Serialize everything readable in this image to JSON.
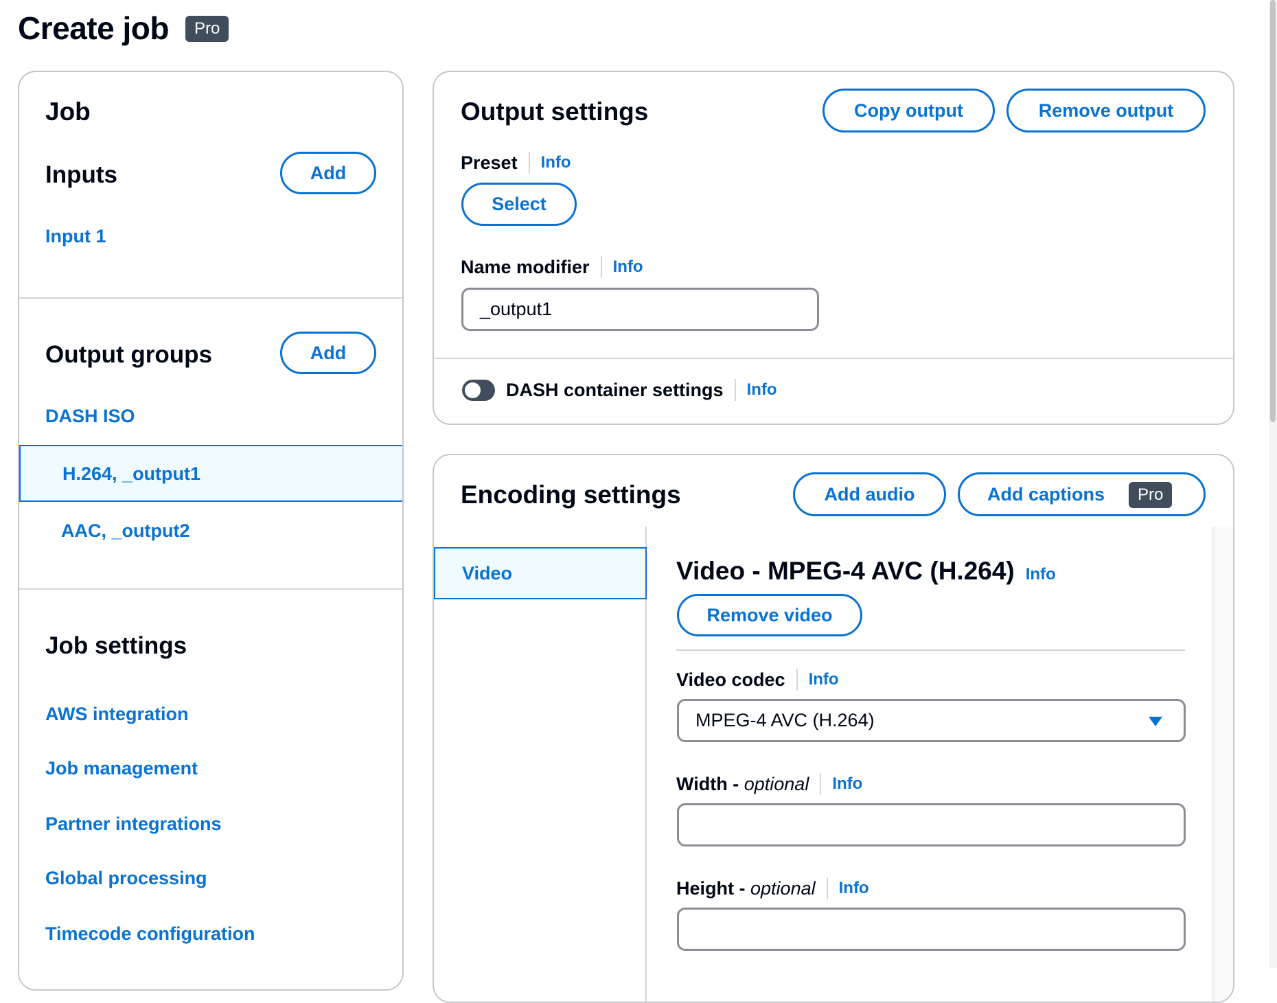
{
  "header": {
    "title": "Create job",
    "badge": "Pro"
  },
  "sidebar": {
    "job_heading": "Job",
    "inputs": {
      "heading": "Inputs",
      "add_label": "Add",
      "items": [
        "Input 1"
      ]
    },
    "output_groups": {
      "heading": "Output groups",
      "add_label": "Add",
      "group": "DASH ISO",
      "outputs": [
        {
          "label": "H.264, _output1",
          "selected": true
        },
        {
          "label": "AAC, _output2",
          "selected": false
        }
      ]
    },
    "job_settings": {
      "heading": "Job settings",
      "items": [
        "AWS integration",
        "Job management",
        "Partner integrations",
        "Global processing",
        "Timecode configuration"
      ]
    }
  },
  "output_settings": {
    "title": "Output settings",
    "copy_label": "Copy output",
    "remove_label": "Remove output",
    "preset": {
      "label": "Preset",
      "info": "Info",
      "select_label": "Select"
    },
    "name_modifier": {
      "label": "Name modifier",
      "info": "Info",
      "value": "_output1"
    },
    "dash_container": {
      "label": "DASH container settings",
      "info": "Info",
      "enabled": false
    }
  },
  "encoding_settings": {
    "title": "Encoding settings",
    "add_audio_label": "Add audio",
    "add_captions_label": "Add captions",
    "captions_badge": "Pro",
    "tabs": [
      {
        "label": "Video",
        "selected": true
      }
    ],
    "video": {
      "heading": "Video - MPEG-4 AVC (H.264)",
      "info": "Info",
      "remove_label": "Remove video",
      "codec": {
        "label": "Video codec",
        "info": "Info",
        "value": "MPEG-4 AVC (H.264)"
      },
      "width": {
        "label": "Width - ",
        "optional": "optional",
        "info": "Info",
        "value": ""
      },
      "height": {
        "label": "Height - ",
        "optional": "optional",
        "info": "Info",
        "value": ""
      }
    }
  },
  "colors": {
    "accent": "#0972d3",
    "text": "#000716",
    "badge": "#414d5c",
    "selected_bg": "#f0fbff"
  }
}
